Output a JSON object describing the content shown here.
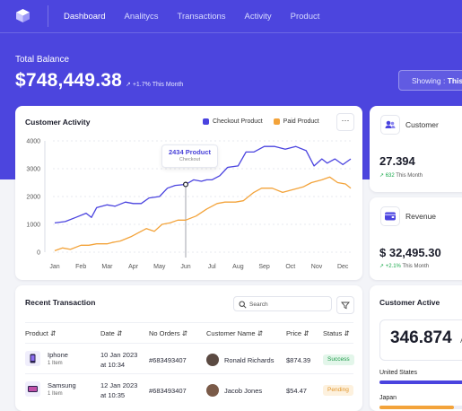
{
  "nav": {
    "items": [
      {
        "label": "Dashboard",
        "active": true
      },
      {
        "label": "Analitycs",
        "active": false
      },
      {
        "label": "Transactions",
        "active": false
      },
      {
        "label": "Activity",
        "active": false
      },
      {
        "label": "Product",
        "active": false
      }
    ]
  },
  "balance": {
    "label": "Total Balance",
    "value": "$748,449.38",
    "change": "+1.7% This Month",
    "showing_prefix": "Showing :",
    "showing_value": "This"
  },
  "activity": {
    "title": "Customer Activity",
    "more_label": "···",
    "tooltip_value": "2434 Product",
    "tooltip_label": "Checkout"
  },
  "chart_data": {
    "type": "line",
    "title": "Customer Activity",
    "categories": [
      "Jan",
      "Feb",
      "Mar",
      "Apr",
      "May",
      "Jun",
      "Jul",
      "Aug",
      "Sep",
      "Oct",
      "Nov",
      "Dec"
    ],
    "ylim": [
      0,
      4000
    ],
    "yticks": [
      "0",
      "1000",
      "2000",
      "3000",
      "4000"
    ],
    "grid": true,
    "legend_position": "top-right",
    "series": [
      {
        "name": "Checkout Product",
        "color": "#4a43df",
        "points": [
          [
            0,
            1050
          ],
          [
            0.4,
            1100
          ],
          [
            0.8,
            1250
          ],
          [
            1.2,
            1400
          ],
          [
            1.4,
            1250
          ],
          [
            1.6,
            1600
          ],
          [
            2.0,
            1700
          ],
          [
            2.3,
            1650
          ],
          [
            2.7,
            1800
          ],
          [
            3.0,
            1750
          ],
          [
            3.3,
            1750
          ],
          [
            3.6,
            1950
          ],
          [
            4.0,
            2000
          ],
          [
            4.3,
            2300
          ],
          [
            4.6,
            2400
          ],
          [
            5.0,
            2434
          ],
          [
            5.3,
            2600
          ],
          [
            5.6,
            2550
          ],
          [
            5.8,
            2600
          ],
          [
            6.0,
            2600
          ],
          [
            6.3,
            2750
          ],
          [
            6.6,
            3050
          ],
          [
            7.0,
            3100
          ],
          [
            7.3,
            3600
          ],
          [
            7.6,
            3600
          ],
          [
            8.0,
            3800
          ],
          [
            8.4,
            3800
          ],
          [
            8.8,
            3700
          ],
          [
            9.2,
            3800
          ],
          [
            9.6,
            3650
          ],
          [
            9.9,
            3100
          ],
          [
            10.2,
            3350
          ],
          [
            10.4,
            3200
          ],
          [
            10.7,
            3350
          ],
          [
            11.0,
            3150
          ],
          [
            11.3,
            3350
          ]
        ]
      },
      {
        "name": "Paid Product",
        "color": "#f3a33a",
        "points": [
          [
            0,
            50
          ],
          [
            0.3,
            150
          ],
          [
            0.6,
            100
          ],
          [
            1.0,
            250
          ],
          [
            1.3,
            250
          ],
          [
            1.6,
            300
          ],
          [
            2.0,
            300
          ],
          [
            2.2,
            350
          ],
          [
            2.5,
            400
          ],
          [
            2.9,
            550
          ],
          [
            3.2,
            700
          ],
          [
            3.5,
            850
          ],
          [
            3.8,
            750
          ],
          [
            4.1,
            1000
          ],
          [
            4.4,
            1050
          ],
          [
            4.7,
            1150
          ],
          [
            5.0,
            1150
          ],
          [
            5.4,
            1300
          ],
          [
            5.8,
            1550
          ],
          [
            6.2,
            1750
          ],
          [
            6.5,
            1800
          ],
          [
            6.9,
            1800
          ],
          [
            7.2,
            1850
          ],
          [
            7.6,
            2150
          ],
          [
            7.9,
            2300
          ],
          [
            8.3,
            2300
          ],
          [
            8.7,
            2150
          ],
          [
            9.1,
            2250
          ],
          [
            9.5,
            2350
          ],
          [
            9.8,
            2500
          ],
          [
            10.2,
            2600
          ],
          [
            10.5,
            2700
          ],
          [
            10.8,
            2500
          ],
          [
            11.1,
            2450
          ],
          [
            11.3,
            2300
          ]
        ]
      }
    ],
    "highlight": {
      "x": 5.0,
      "y": 2434
    }
  },
  "kpis": {
    "customer": {
      "label": "Customer",
      "value": "27.394",
      "change": "632",
      "change_suffix": "This Month"
    },
    "revenue": {
      "label": "Revenue",
      "value": "$ 32,495.30",
      "change": "+2.1%",
      "change_suffix": "This Month"
    }
  },
  "transactions": {
    "title": "Recent Transaction",
    "search_placeholder": "Search",
    "headers": [
      "Product",
      "Date",
      "No Orders",
      "Customer Name",
      "Price",
      "Status"
    ],
    "rows": [
      {
        "product": "Iphone",
        "qty": "1 Item",
        "date": "10 Jan 2023",
        "time": "at 10:34",
        "order": "#683493407",
        "customer": "Ronald Richards",
        "price": "$874.39",
        "status": "Success"
      },
      {
        "product": "Samsung",
        "qty": "1 Item",
        "date": "12 Jan 2023",
        "time": "at 10:35",
        "order": "#683493407",
        "customer": "Jacob Jones",
        "price": "$54.47",
        "status": "Pending"
      }
    ]
  },
  "customer_active": {
    "title": "Customer Active",
    "value": "346.874",
    "suffix": "A",
    "countries": [
      {
        "name": "United States",
        "share": 1.0,
        "color": "#4a43df"
      },
      {
        "name": "Japan",
        "share": 0.75,
        "color": "#f3a33a"
      }
    ]
  }
}
